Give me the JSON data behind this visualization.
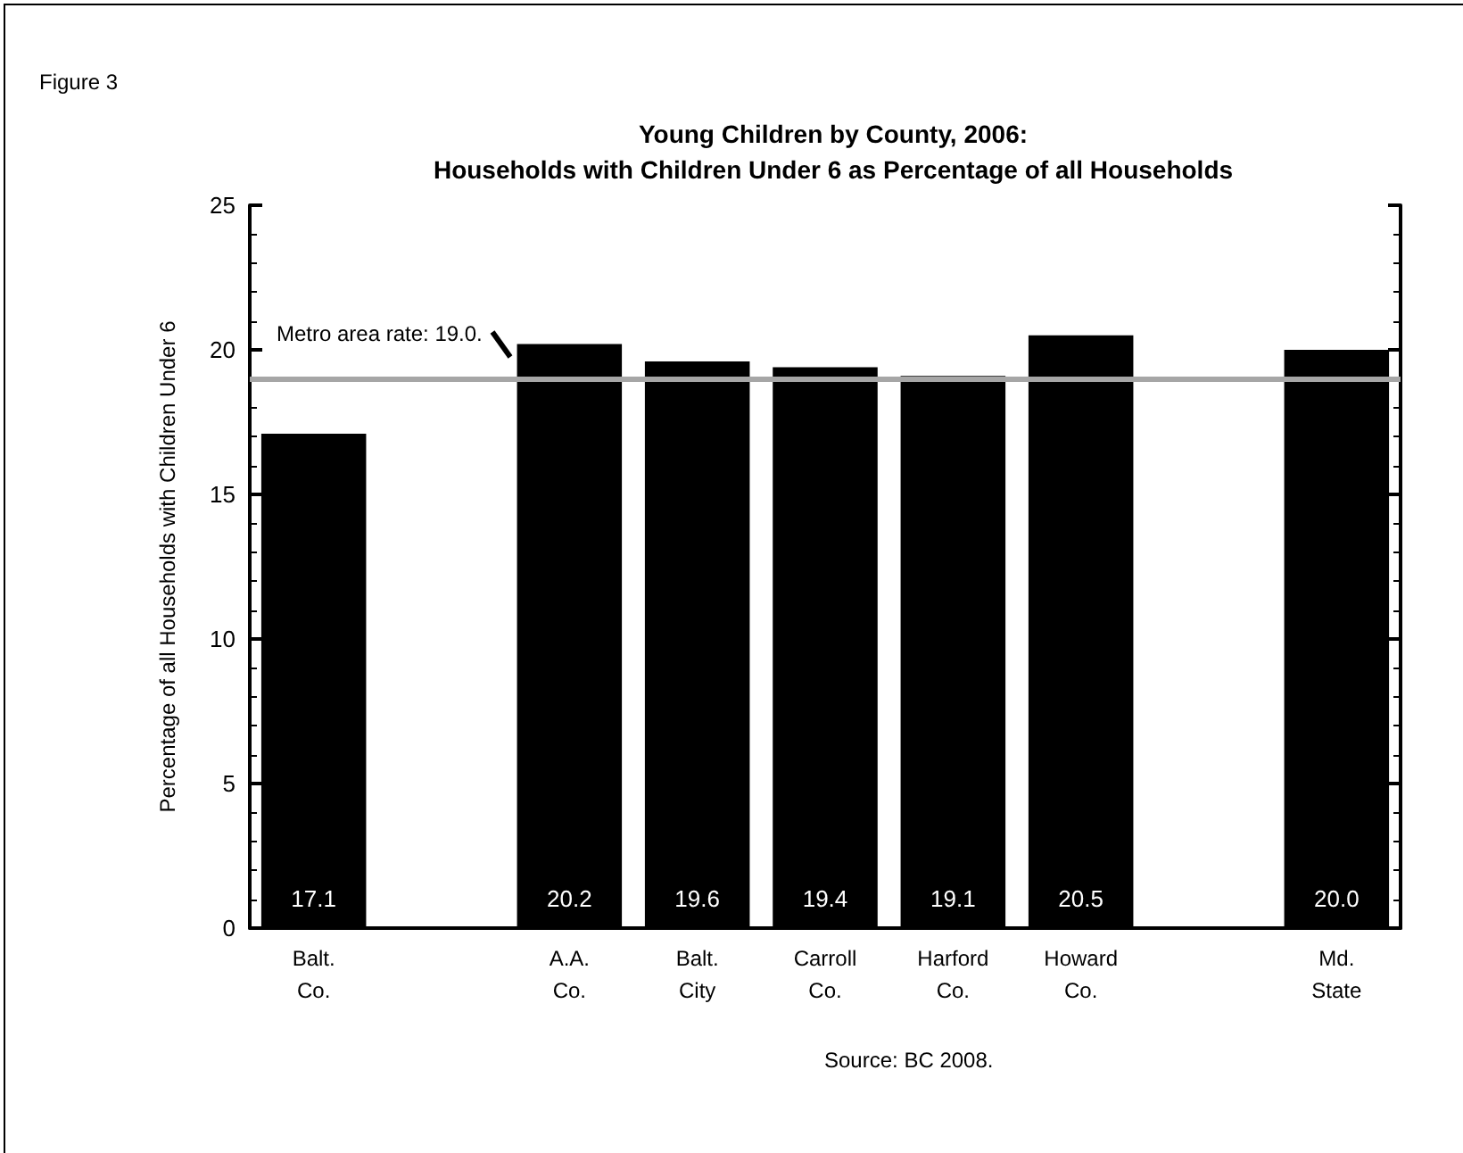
{
  "chart_data": {
    "type": "bar",
    "title": "Young Children by County, 2006:\nHouseholds with Children Under 6 as Percentage of all Households",
    "ylabel": "Percentage of all Households with Children Under 6",
    "categories": [
      "Balt.\nCo.",
      null,
      "A.A.\nCo.",
      "Balt.\nCity",
      "Carroll\nCo.",
      "Harford\nCo.",
      "Howard\nCo.",
      null,
      "Md.\nState"
    ],
    "values": [
      17.1,
      null,
      20.2,
      19.6,
      19.4,
      19.1,
      20.5,
      null,
      20.0
    ],
    "color": "#000000",
    "value_labels": [
      "17.1",
      null,
      "20.2",
      "19.6",
      "19.4",
      "19.1",
      "20.5",
      null,
      "20.0"
    ],
    "ylim": [
      0,
      25
    ],
    "yticks": [
      0,
      5,
      10,
      15,
      20,
      25
    ],
    "grid": false,
    "ref_lines": [
      {
        "axis": "y",
        "value": 19.0,
        "label": "Metro area rate: 19.0.",
        "color": "#a6a6a6",
        "line_style": "solid"
      }
    ],
    "annotations": [
      "Figure 3",
      "Source: BC 2008."
    ]
  }
}
